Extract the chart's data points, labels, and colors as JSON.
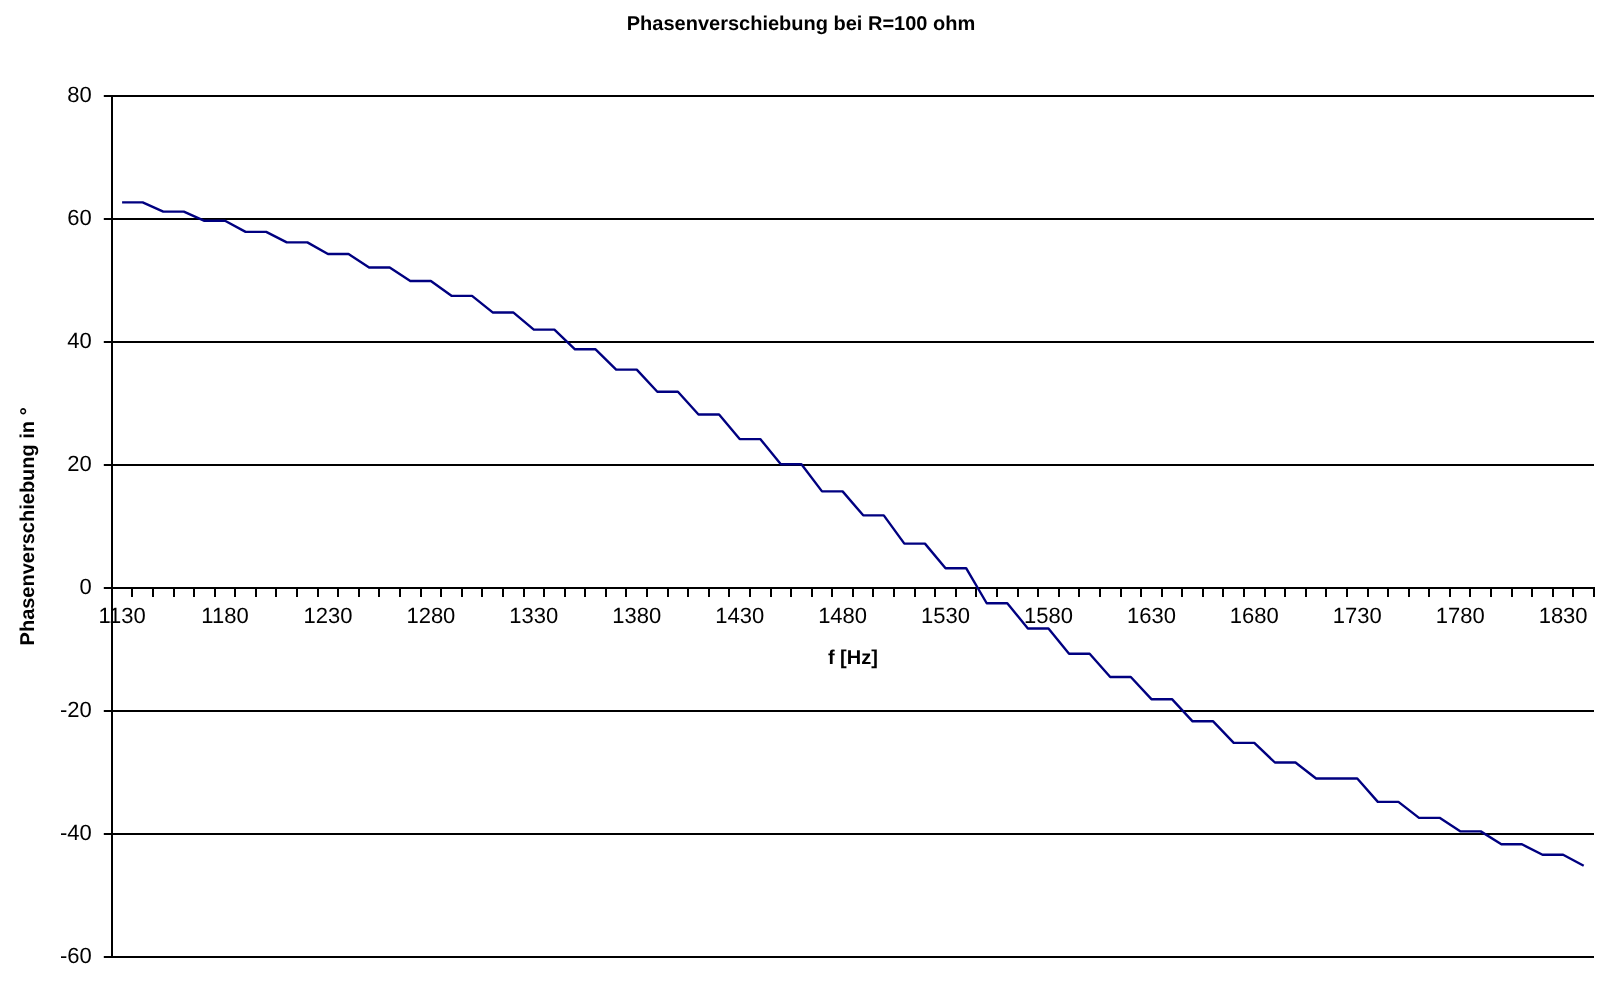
{
  "chart_data": {
    "type": "line",
    "title": "Phasenverschiebung bei R=100 ohm",
    "xlabel": "f [Hz]",
    "ylabel": "Phasenverschiebung in °",
    "categories": [
      "1130",
      null,
      null,
      null,
      null,
      "1180",
      null,
      null,
      null,
      null,
      "1230",
      null,
      null,
      null,
      null,
      "1280",
      null,
      null,
      null,
      null,
      "1330",
      null,
      null,
      null,
      null,
      "1380",
      null,
      null,
      null,
      null,
      "1430",
      null,
      null,
      null,
      null,
      "1480",
      null,
      null,
      null,
      null,
      "1530",
      null,
      null,
      null,
      null,
      "1580",
      null,
      null,
      null,
      null,
      "1630",
      null,
      null,
      null,
      null,
      "1680",
      null,
      null,
      null,
      null,
      "1730",
      null,
      null,
      null,
      null,
      "1780",
      null,
      null,
      null,
      null,
      "1830",
      null
    ],
    "series": [
      {
        "color": "#000080",
        "values": [
          62.7,
          62.7,
          61.2,
          61.2,
          59.7,
          59.7,
          57.9,
          57.9,
          56.2,
          56.2,
          54.3,
          54.3,
          52.1,
          52.1,
          49.9,
          49.9,
          47.5,
          47.5,
          44.8,
          44.8,
          42.0,
          42.0,
          38.8,
          38.8,
          35.5,
          35.5,
          31.9,
          31.9,
          28.2,
          28.2,
          24.2,
          24.2,
          20.1,
          20.1,
          15.7,
          15.7,
          11.8,
          11.8,
          7.2,
          7.2,
          3.2,
          3.2,
          -2.5,
          -2.5,
          -6.6,
          -6.6,
          -10.7,
          -10.7,
          -14.5,
          -14.5,
          -18.1,
          -18.1,
          -21.7,
          -21.7,
          -25.2,
          -25.2,
          -28.4,
          -28.4,
          -31.0,
          -31.0,
          -31.0,
          -34.8,
          -34.8,
          -37.4,
          -37.4,
          -39.6,
          -39.6,
          -41.7,
          -41.7,
          -43.4,
          -43.4,
          -45.2
        ]
      }
    ],
    "ylim": [
      -60,
      80
    ],
    "yticks": [
      -60,
      -40,
      -20,
      0,
      20,
      40,
      60,
      80
    ],
    "grid": "y",
    "legend": false,
    "marker": "none",
    "line_style": "solid"
  }
}
